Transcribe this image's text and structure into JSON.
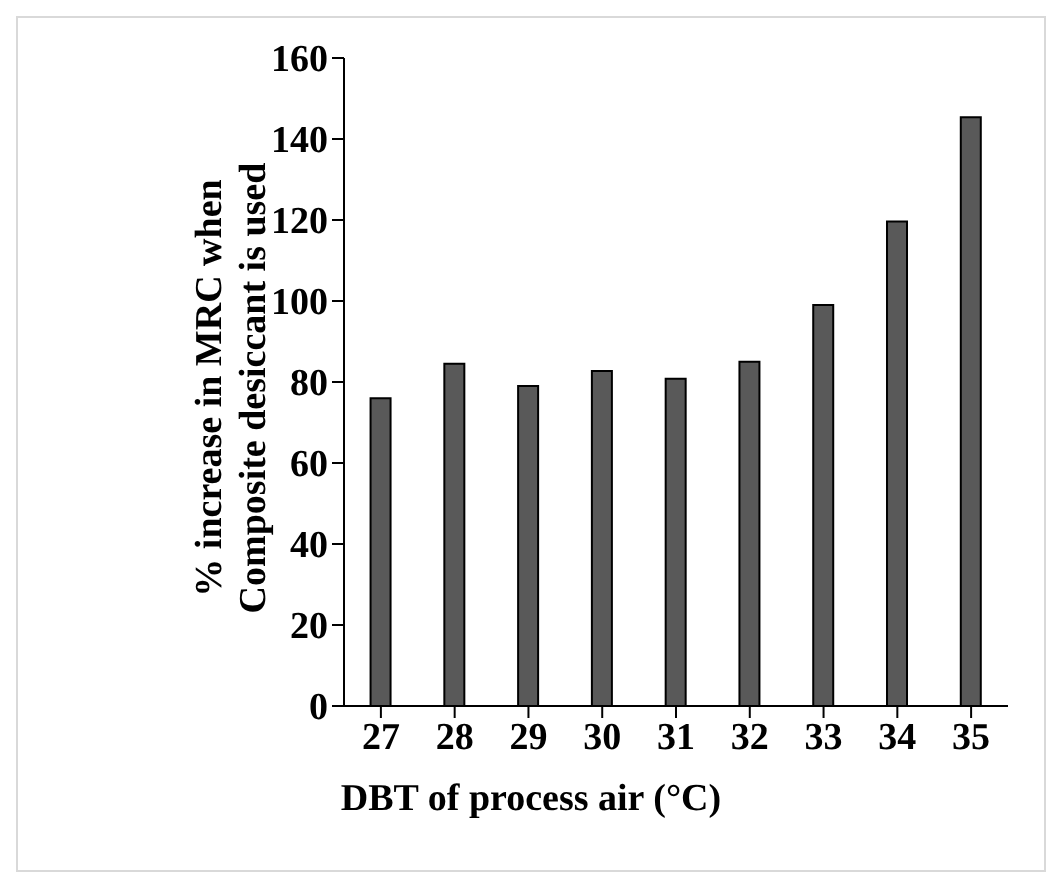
{
  "chart_data": {
    "type": "bar",
    "xlabel": "DBT of process air (°C)",
    "ylabel": "% increase in MRC when\nComposite desiccant is used",
    "categories": [
      "27",
      "28",
      "29",
      "30",
      "31",
      "32",
      "33",
      "34",
      "35"
    ],
    "values": [
      76,
      84.5,
      79,
      82.7,
      80.8,
      85,
      99,
      119.6,
      145.4
    ],
    "color": "#595959",
    "ylim": [
      0,
      160
    ],
    "yticks": [
      0,
      20,
      40,
      60,
      80,
      100,
      120,
      140,
      160
    ],
    "grid": false,
    "legend": false
  }
}
